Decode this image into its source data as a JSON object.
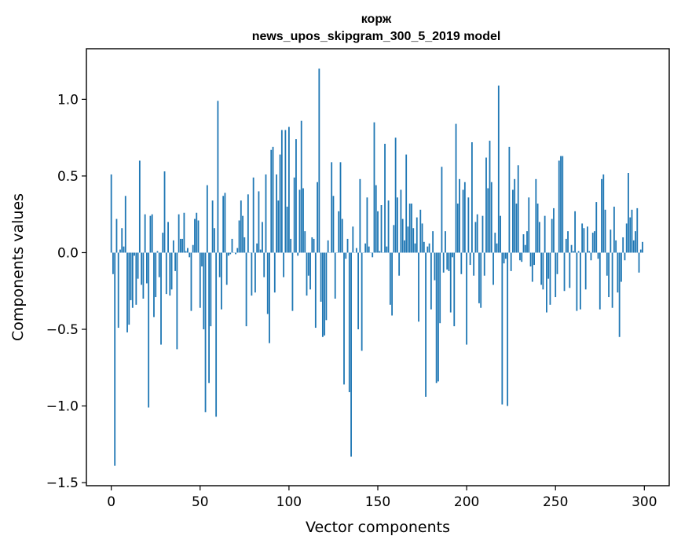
{
  "chart_data": {
    "type": "bar",
    "title": "корж",
    "subtitle": "news_upos_skipgram_300_5_2019 model",
    "xlabel": "Vector components",
    "ylabel": "Components values",
    "xlim": [
      -14,
      314
    ],
    "ylim": [
      -1.52,
      1.33
    ],
    "x_ticks": [
      0,
      50,
      100,
      150,
      200,
      250,
      300
    ],
    "x_tick_labels": [
      "0",
      "50",
      "100",
      "150",
      "200",
      "250",
      "300"
    ],
    "y_ticks": [
      -1.5,
      -1.0,
      -0.5,
      0.0,
      0.5,
      1.0
    ],
    "y_tick_labels": [
      "−1.5",
      "−1.0",
      "−0.5",
      "0.0",
      "0.5",
      "1.0"
    ],
    "grid": false,
    "bar_color": "#1f77b4",
    "x": [
      0,
      1,
      2,
      3,
      4,
      5,
      6,
      7,
      8,
      9,
      10,
      11,
      12,
      13,
      14,
      15,
      16,
      17,
      18,
      19,
      20,
      21,
      22,
      23,
      24,
      25,
      26,
      27,
      28,
      29,
      30,
      31,
      32,
      33,
      34,
      35,
      36,
      37,
      38,
      39,
      40,
      41,
      42,
      43,
      44,
      45,
      46,
      47,
      48,
      49,
      50,
      51,
      52,
      53,
      54,
      55,
      56,
      57,
      58,
      59,
      60,
      61,
      62,
      63,
      64,
      65,
      66,
      67,
      68,
      69,
      70,
      71,
      72,
      73,
      74,
      75,
      76,
      77,
      78,
      79,
      80,
      81,
      82,
      83,
      84,
      85,
      86,
      87,
      88,
      89,
      90,
      91,
      92,
      93,
      94,
      95,
      96,
      97,
      98,
      99,
      100,
      101,
      102,
      103,
      104,
      105,
      106,
      107,
      108,
      109,
      110,
      111,
      112,
      113,
      114,
      115,
      116,
      117,
      118,
      119,
      120,
      121,
      122,
      123,
      124,
      125,
      126,
      127,
      128,
      129,
      130,
      131,
      132,
      133,
      134,
      135,
      136,
      137,
      138,
      139,
      140,
      141,
      142,
      143,
      144,
      145,
      146,
      147,
      148,
      149,
      150,
      151,
      152,
      153,
      154,
      155,
      156,
      157,
      158,
      159,
      160,
      161,
      162,
      163,
      164,
      165,
      166,
      167,
      168,
      169,
      170,
      171,
      172,
      173,
      174,
      175,
      176,
      177,
      178,
      179,
      180,
      181,
      182,
      183,
      184,
      185,
      186,
      187,
      188,
      189,
      190,
      191,
      192,
      193,
      194,
      195,
      196,
      197,
      198,
      199,
      200,
      201,
      202,
      203,
      204,
      205,
      206,
      207,
      208,
      209,
      210,
      211,
      212,
      213,
      214,
      215,
      216,
      217,
      218,
      219,
      220,
      221,
      222,
      223,
      224,
      225,
      226,
      227,
      228,
      229,
      230,
      231,
      232,
      233,
      234,
      235,
      236,
      237,
      238,
      239,
      240,
      241,
      242,
      243,
      244,
      245,
      246,
      247,
      248,
      249,
      250,
      251,
      252,
      253,
      254,
      255,
      256,
      257,
      258,
      259,
      260,
      261,
      262,
      263,
      264,
      265,
      266,
      267,
      268,
      269,
      270,
      271,
      272,
      273,
      274,
      275,
      276,
      277,
      278,
      279,
      280,
      281,
      282,
      283,
      284,
      285,
      286,
      287,
      288,
      289,
      290,
      291,
      292,
      293,
      294,
      295,
      296,
      297,
      298,
      299
    ],
    "values": [
      0.51,
      -0.14,
      -1.39,
      0.22,
      -0.49,
      0.02,
      0.16,
      0.04,
      0.37,
      -0.52,
      -0.47,
      -0.31,
      -0.36,
      -0.02,
      -0.34,
      -0.17,
      0.6,
      -0.21,
      -0.3,
      0.25,
      -0.2,
      -1.01,
      0.24,
      0.25,
      -0.42,
      -0.29,
      0.01,
      -0.16,
      -0.6,
      0.13,
      0.53,
      -0.27,
      0.2,
      -0.28,
      -0.24,
      0.08,
      -0.12,
      -0.63,
      0.25,
      0.09,
      0.09,
      0.26,
      0.01,
      0.03,
      -0.03,
      -0.38,
      0.05,
      0.22,
      0.26,
      0.21,
      -0.36,
      -0.09,
      -0.5,
      -1.04,
      0.44,
      -0.85,
      -0.48,
      0.34,
      0.16,
      -1.07,
      0.99,
      -0.16,
      -0.37,
      0.37,
      0.39,
      -0.21,
      -0.02,
      -0.01,
      0.09,
      0.0,
      -0.01,
      0.03,
      0.21,
      0.34,
      0.24,
      0.1,
      -0.48,
      0.38,
      0.0,
      -0.28,
      0.49,
      -0.26,
      0.06,
      0.4,
      0.02,
      0.2,
      -0.16,
      0.51,
      -0.4,
      -0.59,
      0.67,
      0.69,
      -0.26,
      0.51,
      0.34,
      0.64,
      0.8,
      -0.16,
      0.8,
      0.3,
      0.82,
      0.09,
      -0.38,
      0.49,
      0.74,
      -0.02,
      0.41,
      0.86,
      0.42,
      0.14,
      -0.28,
      -0.15,
      -0.24,
      0.1,
      0.09,
      -0.49,
      0.46,
      1.2,
      -0.32,
      -0.55,
      -0.54,
      -0.44,
      0.08,
      0.0,
      0.59,
      0.37,
      -0.3,
      0.0,
      0.27,
      0.59,
      0.22,
      -0.86,
      -0.04,
      0.09,
      -0.91,
      -1.33,
      0.17,
      0.0,
      0.03,
      -0.5,
      0.48,
      -0.64,
      0.0,
      0.06,
      0.36,
      0.04,
      0.0,
      -0.03,
      0.85,
      0.44,
      0.27,
      0.01,
      0.31,
      0.0,
      0.71,
      0.04,
      0.34,
      -0.34,
      -0.41,
      0.18,
      0.75,
      0.36,
      -0.15,
      0.41,
      0.22,
      0.08,
      0.64,
      0.17,
      0.32,
      0.32,
      0.16,
      0.06,
      0.23,
      -0.45,
      0.28,
      0.19,
      0.07,
      -0.94,
      0.04,
      0.06,
      -0.37,
      0.14,
      -0.18,
      -0.85,
      -0.84,
      -0.46,
      0.56,
      -0.13,
      0.14,
      -0.11,
      -0.12,
      -0.39,
      -0.03,
      -0.48,
      0.84,
      0.32,
      0.48,
      -0.14,
      0.41,
      0.46,
      -0.6,
      0.36,
      -0.08,
      0.72,
      -0.15,
      0.2,
      0.25,
      -0.33,
      -0.36,
      0.24,
      -0.15,
      0.62,
      0.42,
      0.73,
      0.46,
      -0.21,
      0.13,
      0.06,
      1.09,
      0.24,
      -0.99,
      -0.07,
      -0.04,
      -1.0,
      0.69,
      -0.12,
      0.41,
      0.48,
      0.32,
      0.57,
      -0.05,
      -0.06,
      0.12,
      0.05,
      0.14,
      0.36,
      -0.09,
      -0.19,
      -0.08,
      0.48,
      0.32,
      0.2,
      -0.21,
      -0.24,
      0.24,
      -0.39,
      -0.17,
      -0.34,
      0.22,
      0.29,
      -0.29,
      -0.14,
      0.6,
      0.63,
      0.63,
      -0.25,
      0.09,
      0.14,
      -0.23,
      0.05,
      0.01,
      0.27,
      -0.38,
      0.01,
      -0.37,
      0.19,
      0.16,
      -0.24,
      0.17,
      0.01,
      -0.05,
      0.13,
      0.14,
      0.33,
      -0.04,
      -0.37,
      0.48,
      0.51,
      0.28,
      -0.15,
      -0.29,
      0.15,
      -0.36,
      0.3,
      0.08,
      -0.26,
      -0.55,
      -0.19,
      0.1,
      -0.05,
      0.19,
      0.52,
      0.23,
      0.28,
      0.08,
      0.14,
      0.29,
      -0.13,
      0.02,
      0.07
    ]
  }
}
